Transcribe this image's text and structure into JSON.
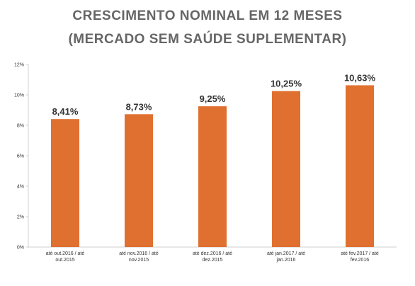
{
  "chart_data": {
    "type": "bar",
    "title": "CRESCIMENTO NOMINAL EM 12 MESES",
    "subtitle": "(MERCADO SEM SAÚDE SUPLEMENTAR)",
    "categories": [
      [
        "até out.2016 / até",
        "out.2015"
      ],
      [
        "até nov.2016 / até",
        "nov.2015"
      ],
      [
        "até dez.2016 / até",
        "dez.2015"
      ],
      [
        "até jan.2017 / até",
        "jan.2016"
      ],
      [
        "até fev.2017 / até",
        "fev.2016"
      ]
    ],
    "values": [
      8.41,
      8.73,
      9.25,
      10.25,
      10.63
    ],
    "data_labels": [
      "8,41%",
      "8,73%",
      "9,25%",
      "10,25%",
      "10,63%"
    ],
    "yticks": [
      0,
      2,
      4,
      6,
      8,
      10,
      12
    ],
    "ytick_labels": [
      "0%",
      "2%",
      "4%",
      "6%",
      "8%",
      "10%",
      "12%"
    ],
    "ylim": [
      0,
      12
    ],
    "grid": false,
    "legend": "none",
    "bar_color": "#E07030"
  }
}
